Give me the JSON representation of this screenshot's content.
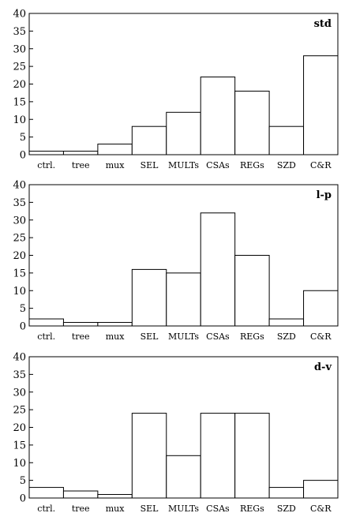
{
  "chart_data": [
    {
      "type": "bar",
      "title": "std",
      "categories": [
        "ctrl.",
        "tree",
        "mux",
        "SEL",
        "MULTs",
        "CSAs",
        "REGs",
        "SZD",
        "C&R"
      ],
      "values": [
        1,
        1,
        3,
        8,
        12,
        22,
        18,
        8,
        28
      ],
      "yticks": [
        0,
        5,
        10,
        15,
        20,
        25,
        30,
        35,
        40
      ],
      "ylim": [
        0,
        40
      ],
      "grid": false,
      "xlabel": "",
      "ylabel": ""
    },
    {
      "type": "bar",
      "title": "l-p",
      "categories": [
        "ctrl.",
        "tree",
        "mux",
        "SEL",
        "MULTs",
        "CSAs",
        "REGs",
        "SZD",
        "C&R"
      ],
      "values": [
        2,
        1,
        1,
        16,
        15,
        32,
        20,
        2,
        10
      ],
      "yticks": [
        0,
        5,
        10,
        15,
        20,
        25,
        30,
        35,
        40
      ],
      "ylim": [
        0,
        40
      ],
      "grid": false,
      "xlabel": "",
      "ylabel": ""
    },
    {
      "type": "bar",
      "title": "d-v",
      "categories": [
        "ctrl.",
        "tree",
        "mux",
        "SEL",
        "MULTs",
        "CSAs",
        "REGs",
        "SZD",
        "C&R"
      ],
      "values": [
        3,
        2,
        1,
        24,
        12,
        24,
        24,
        3,
        5
      ],
      "yticks": [
        0,
        5,
        10,
        15,
        20,
        25,
        30,
        35,
        40
      ],
      "ylim": [
        0,
        40
      ],
      "grid": false,
      "xlabel": "",
      "ylabel": ""
    }
  ]
}
